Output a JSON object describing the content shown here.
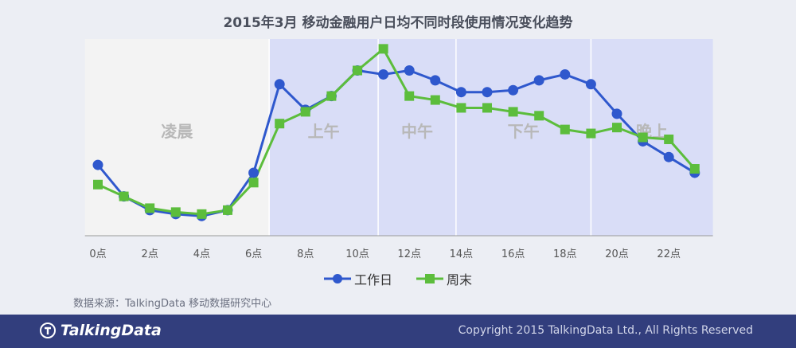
{
  "title": "2015年3月 移动金融用户日均不同时段使用情况变化趋势",
  "chart_data": {
    "type": "line",
    "x": [
      0,
      1,
      2,
      3,
      4,
      5,
      6,
      7,
      8,
      9,
      10,
      11,
      12,
      13,
      14,
      15,
      16,
      17,
      18,
      19,
      20,
      21,
      22,
      23
    ],
    "tick_labels": [
      "0点",
      "2点",
      "4点",
      "6点",
      "8点",
      "10点",
      "12点",
      "14点",
      "16点",
      "18点",
      "20点",
      "22点"
    ],
    "tick_values": [
      0,
      2,
      4,
      6,
      8,
      10,
      12,
      14,
      16,
      18,
      20,
      22
    ],
    "ylim": [
      0,
      100
    ],
    "series": [
      {
        "name": "工作日",
        "color": "#2f58cd",
        "marker": "circle",
        "values": [
          36,
          20,
          13,
          11,
          10,
          13,
          32,
          77,
          64,
          71,
          84,
          82,
          84,
          79,
          73,
          73,
          74,
          79,
          82,
          77,
          62,
          48,
          40,
          32
        ]
      },
      {
        "name": "周末",
        "color": "#5cbd3c",
        "marker": "square",
        "values": [
          26,
          20,
          14,
          12,
          11,
          13,
          27,
          57,
          63,
          71,
          84,
          95,
          71,
          69,
          65,
          65,
          63,
          61,
          54,
          52,
          55,
          50,
          49,
          34
        ]
      }
    ],
    "regions": [
      {
        "label": "凌晨",
        "from": -0.5,
        "to": 6.6,
        "color": "#f3f3f3"
      },
      {
        "label": "上午",
        "from": 6.6,
        "to": 10.8,
        "color": "#d9ddf7"
      },
      {
        "label": "中午",
        "from": 10.8,
        "to": 13.8,
        "color": "#d9ddf7"
      },
      {
        "label": "下午",
        "from": 13.8,
        "to": 19.0,
        "color": "#d9ddf7"
      },
      {
        "label": "晚上",
        "from": 19.0,
        "to": 23.7,
        "color": "#d9ddf7"
      }
    ]
  },
  "legend": {
    "workday": "工作日",
    "weekend": "周末"
  },
  "source": "数据来源：TalkingData 移动数据研究中心",
  "footer": {
    "logo_text": "TalkingData",
    "copyright": "Copyright 2015 TalkingData Ltd., All Rights Reserved"
  }
}
